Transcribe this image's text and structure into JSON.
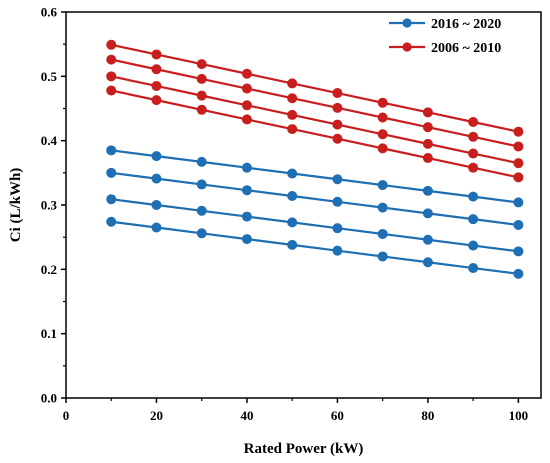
{
  "chart_data": {
    "type": "line",
    "xlabel": "Rated Power (kW)",
    "ylabel": "Ci  (L/kWh)",
    "xlim": [
      0,
      105
    ],
    "ylim": [
      0.0,
      0.6
    ],
    "xticks": [
      "0",
      "20",
      "40",
      "60",
      "80",
      "100"
    ],
    "yticks": [
      "0.0",
      "0.1",
      "0.2",
      "0.3",
      "0.4",
      "0.5",
      "0.6"
    ],
    "x": [
      10,
      20,
      30,
      40,
      50,
      60,
      70,
      80,
      90,
      100
    ],
    "legend_position": "top-right",
    "groups": [
      {
        "name": "2016 ~ 2020",
        "color": "#1f6fb4",
        "lines": [
          [
            0.385,
            0.376,
            0.367,
            0.358,
            0.349,
            0.34,
            0.331,
            0.322,
            0.313,
            0.304
          ],
          [
            0.35,
            0.341,
            0.332,
            0.323,
            0.314,
            0.305,
            0.296,
            0.287,
            0.278,
            0.269
          ],
          [
            0.309,
            0.3,
            0.291,
            0.282,
            0.273,
            0.264,
            0.255,
            0.246,
            0.237,
            0.228
          ],
          [
            0.274,
            0.265,
            0.256,
            0.247,
            0.238,
            0.229,
            0.22,
            0.211,
            0.202,
            0.193
          ]
        ]
      },
      {
        "name": "2006 ~ 2010",
        "color": "#c81e1e",
        "lines": [
          [
            0.549,
            0.534,
            0.519,
            0.504,
            0.489,
            0.474,
            0.459,
            0.444,
            0.429,
            0.414
          ],
          [
            0.526,
            0.511,
            0.496,
            0.481,
            0.466,
            0.451,
            0.436,
            0.421,
            0.406,
            0.391
          ],
          [
            0.5,
            0.485,
            0.47,
            0.455,
            0.44,
            0.425,
            0.41,
            0.395,
            0.38,
            0.365
          ],
          [
            0.478,
            0.463,
            0.448,
            0.433,
            0.418,
            0.403,
            0.388,
            0.373,
            0.358,
            0.343
          ]
        ]
      }
    ]
  }
}
